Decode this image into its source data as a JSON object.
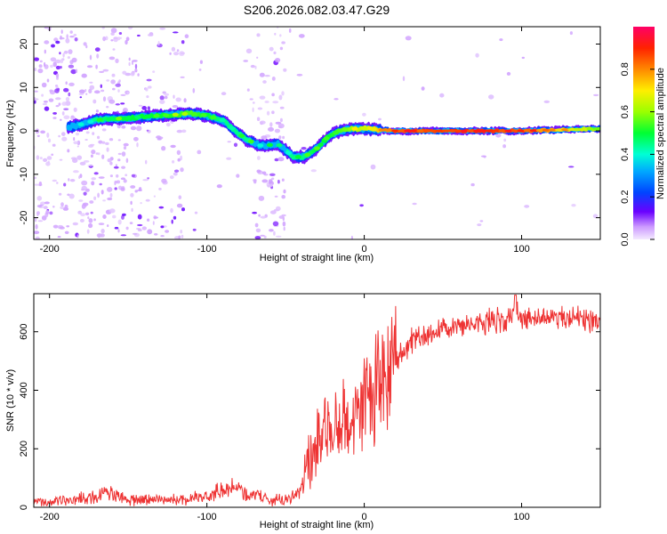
{
  "title": "S206.2026.082.03.47.G29",
  "chart_data": [
    {
      "type": "heatmap",
      "xlabel": "Height of straight line (km)",
      "ylabel": "Frequency (Hz)",
      "xlim": [
        -210,
        150
      ],
      "ylim": [
        -25,
        24
      ],
      "xticks": [
        -200,
        -100,
        0,
        100
      ],
      "yticks": [
        -20,
        -10,
        0,
        10,
        20
      ],
      "xtick_labels": [
        "-200",
        "-100",
        "0",
        "100"
      ],
      "ytick_labels": [
        "-20",
        "-10",
        "0",
        "10",
        "20"
      ],
      "colorbar": {
        "label": "Normalized spectral amplitude",
        "range": [
          0,
          1
        ],
        "ticks": [
          0,
          0.2,
          0.4,
          0.6,
          0.8
        ],
        "tick_labels": [
          "0.0",
          "0.2",
          "0.4",
          "0.6",
          "0.8"
        ]
      },
      "ridge": {
        "height_km": [
          -185,
          -170,
          -150,
          -130,
          -110,
          -100,
          -90,
          -82,
          -75,
          -65,
          -55,
          -45,
          -38,
          -30,
          -22,
          -15,
          -8,
          0,
          20,
          60,
          100,
          150
        ],
        "frequency_hz": [
          1,
          2.5,
          3,
          3.5,
          4,
          3.5,
          2.5,
          0,
          -2,
          -3.5,
          -3,
          -6,
          -6,
          -4,
          -1,
          0,
          0.5,
          0.5,
          0,
          0,
          0,
          0.5
        ],
        "amplitude": [
          0.35,
          0.45,
          0.5,
          0.5,
          0.55,
          0.5,
          0.45,
          0.45,
          0.45,
          0.4,
          0.4,
          0.45,
          0.45,
          0.5,
          0.5,
          0.55,
          0.6,
          0.65,
          0.85,
          0.9,
          0.85,
          0.6
        ]
      }
    },
    {
      "type": "line",
      "xlabel": "Height of straight line (km)",
      "ylabel": "SNR (10 * v/v)",
      "xlim": [
        -210,
        150
      ],
      "ylim": [
        0,
        730
      ],
      "xticks": [
        -200,
        -100,
        0,
        100
      ],
      "yticks": [
        0,
        200,
        400,
        600
      ],
      "xtick_labels": [
        "-200",
        "-100",
        "0",
        "100"
      ],
      "ytick_labels": [
        "0",
        "200",
        "400",
        "600"
      ],
      "color": "#ee3333",
      "series": [
        {
          "name": "SNR",
          "x": [
            -210,
            -190,
            -170,
            -165,
            -150,
            -120,
            -110,
            -100,
            -90,
            -80,
            -70,
            -60,
            -50,
            -40,
            -37,
            -34,
            -30,
            -25,
            -20,
            -15,
            -10,
            -5,
            0,
            5,
            10,
            15,
            20,
            25,
            30,
            40,
            50,
            60,
            70,
            80,
            90,
            96,
            100,
            110,
            120,
            130,
            140,
            150
          ],
          "y": [
            18,
            22,
            35,
            55,
            28,
            25,
            30,
            40,
            60,
            70,
            40,
            25,
            25,
            55,
            120,
            160,
            210,
            240,
            270,
            290,
            300,
            330,
            360,
            390,
            430,
            470,
            490,
            530,
            570,
            590,
            610,
            620,
            630,
            640,
            635,
            690,
            640,
            645,
            640,
            650,
            640,
            640
          ]
        }
      ]
    }
  ]
}
